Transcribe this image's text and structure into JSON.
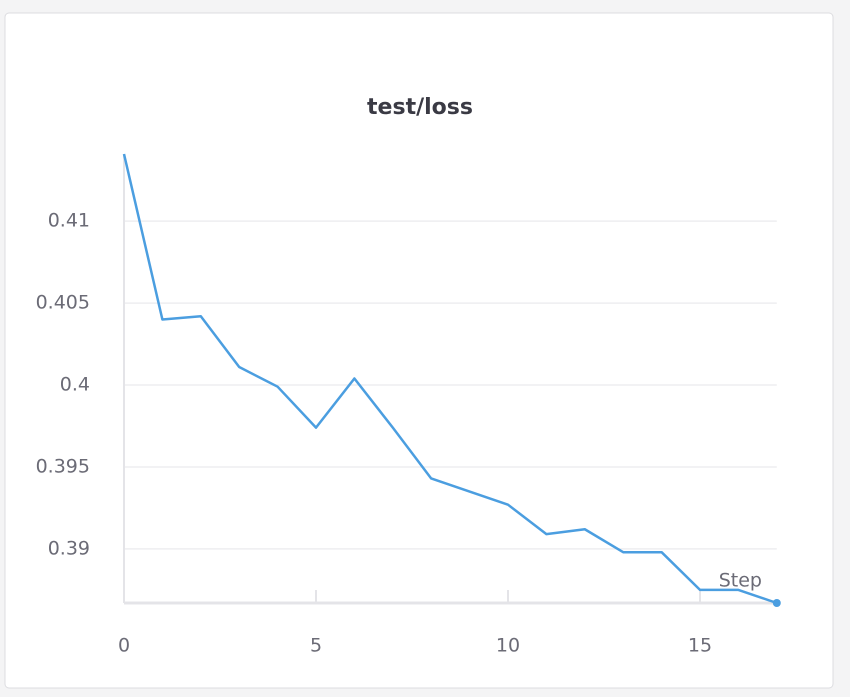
{
  "chart_data": {
    "type": "line",
    "title": "test/loss",
    "x_label": "Step",
    "x": [
      0,
      1,
      2,
      3,
      4,
      5,
      6,
      7,
      8,
      9,
      10,
      11,
      12,
      13,
      14,
      15,
      16,
      17
    ],
    "series": [
      {
        "name": "test/loss",
        "color": "#4b9ee0",
        "values": [
          0.4141,
          0.404,
          0.4042,
          0.4011,
          0.3999,
          0.3974,
          0.4004,
          0.3974,
          0.3943,
          0.3935,
          0.3927,
          0.3909,
          0.3912,
          0.3898,
          0.3898,
          0.3875,
          0.3875,
          0.3867
        ]
      }
    ],
    "xlim": [
      0,
      17
    ],
    "xticks": [
      0,
      5,
      10,
      15
    ],
    "ylim": [
      0.3867,
      0.4141
    ],
    "yticks": [
      0.39,
      0.395,
      0.4,
      0.405,
      0.41
    ],
    "grid": true
  }
}
